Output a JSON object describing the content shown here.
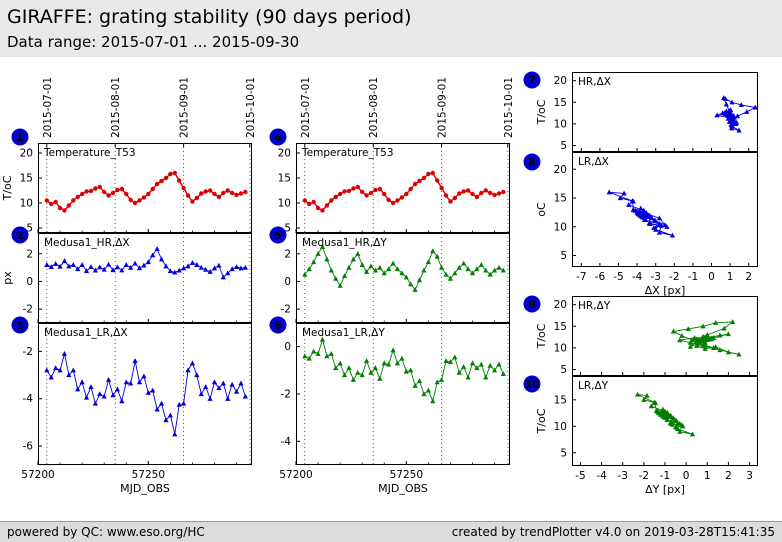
{
  "header": {
    "title": "GIRAFFE: grating stability (90 days period)",
    "subtitle": "Data range: 2015-07-01 ... 2015-09-30"
  },
  "footer": {
    "left": "powered by QC: www.eso.org/HC",
    "right": "created by trendPlotter v4.0 on 2019-03-28T15:41:35"
  },
  "colors": {
    "red": "#dd0000",
    "blue": "#0000dd",
    "green": "#008000",
    "badge_bg": "#0000cc",
    "badge_text": "#ffffff"
  },
  "series": {
    "mjd": [
      57204,
      57206,
      57208,
      57210,
      57212,
      57214,
      57216,
      57218,
      57220,
      57222,
      57224,
      57226,
      57228,
      57230,
      57232,
      57234,
      57236,
      57238,
      57240,
      57242,
      57244,
      57246,
      57248,
      57250,
      57252,
      57254,
      57256,
      57258,
      57260,
      57262,
      57264,
      57266,
      57268,
      57270,
      57272,
      57274,
      57276,
      57278,
      57280,
      57282,
      57284,
      57286,
      57288,
      57290,
      57292,
      57294
    ],
    "temperature": [
      10.5,
      9.8,
      10.2,
      9.0,
      8.5,
      9.5,
      10.5,
      11.2,
      11.8,
      12.3,
      12.4,
      12.9,
      13.2,
      12.2,
      11.5,
      12.0,
      12.6,
      12.8,
      11.8,
      10.6,
      10.0,
      10.5,
      11.1,
      11.8,
      12.8,
      13.8,
      14.4,
      15.0,
      15.8,
      16.0,
      14.5,
      13.0,
      11.5,
      10.3,
      11.0,
      11.9,
      12.3,
      12.5,
      11.8,
      11.2,
      12.0,
      12.5,
      12.0,
      11.6,
      11.9,
      12.2
    ],
    "hr_dx": [
      1.2,
      1.05,
      1.28,
      1.08,
      1.48,
      1.1,
      1.2,
      0.9,
      1.2,
      0.75,
      1.05,
      0.8,
      1.03,
      0.86,
      1.22,
      0.83,
      1.03,
      0.81,
      1.2,
      1.0,
      1.3,
      0.96,
      1.16,
      1.4,
      1.9,
      2.35,
      1.6,
      1.1,
      0.75,
      0.65,
      0.8,
      0.95,
      1.1,
      1.35,
      1.2,
      1.0,
      0.85,
      0.7,
      0.95,
      1.15,
      0.3,
      0.6,
      0.9,
      1.05,
      0.95,
      1.0
    ],
    "lr_dx": [
      -2.8,
      -3.1,
      -2.7,
      -2.8,
      -2.1,
      -3.0,
      -2.8,
      -3.6,
      -3.3,
      -3.95,
      -3.5,
      -4.2,
      -3.8,
      -3.9,
      -3.2,
      -3.85,
      -3.6,
      -4.1,
      -3.3,
      -3.35,
      -2.4,
      -3.3,
      -3.05,
      -3.75,
      -3.65,
      -4.45,
      -4.2,
      -4.9,
      -4.7,
      -5.5,
      -4.25,
      -4.2,
      -2.8,
      -2.5,
      -3.0,
      -3.8,
      -3.5,
      -4.0,
      -3.3,
      -3.55,
      -3.35,
      -4.0,
      -3.4,
      -3.7,
      -3.35,
      -3.9
    ],
    "hr_dy": [
      0.5,
      0.9,
      1.4,
      2.0,
      2.5,
      1.6,
      0.8,
      0.2,
      -0.3,
      0.4,
      1.0,
      1.6,
      2.0,
      1.2,
      0.7,
      1.1,
      0.8,
      1.0,
      0.6,
      0.9,
      1.3,
      0.9,
      0.6,
      0.3,
      -0.2,
      -0.6,
      0.1,
      0.8,
      1.4,
      2.2,
      1.8,
      1.0,
      0.5,
      0.2,
      0.6,
      1.0,
      1.3,
      0.9,
      0.6,
      0.9,
      1.2,
      0.8,
      0.5,
      0.8,
      1.0,
      0.8
    ],
    "lr_dy": [
      -0.4,
      -0.5,
      -0.2,
      -0.3,
      0.3,
      -0.4,
      -0.3,
      -0.9,
      -0.7,
      -1.2,
      -0.9,
      -1.4,
      -1.1,
      -1.2,
      -0.6,
      -1.1,
      -0.9,
      -1.35,
      -0.7,
      -0.75,
      -0.15,
      -0.7,
      -0.5,
      -1.05,
      -1.0,
      -1.65,
      -1.45,
      -2.0,
      -1.85,
      -2.3,
      -1.5,
      -1.4,
      -0.6,
      -0.65,
      -0.45,
      -1.1,
      -0.85,
      -1.3,
      -0.7,
      -0.9,
      -0.75,
      -1.3,
      -0.8,
      -1.0,
      -0.75,
      -1.15
    ]
  },
  "chart_data": [
    {
      "id": "plot1",
      "badge": "1",
      "badge_offset": [
        -18,
        -6
      ],
      "type": "line",
      "label": "Temperature_T53",
      "xkey": "mjd",
      "ykey": "temperature",
      "color": "red",
      "marker": "circle",
      "xlim": [
        57200,
        57297
      ],
      "xticks": [
        57200,
        57250
      ],
      "xminor": [
        57210,
        57220,
        57230,
        57240,
        57260,
        57270,
        57280,
        57290
      ],
      "gridx": [
        57204,
        57235,
        57266,
        57296
      ],
      "top_labels": [
        {
          "v": 57204,
          "t": "2015-07-01"
        },
        {
          "v": 57235,
          "t": "2015-08-01"
        },
        {
          "v": 57266,
          "t": "2015-09-01"
        },
        {
          "v": 57296,
          "t": "2015-10-01"
        }
      ],
      "ylim": [
        4,
        22
      ],
      "yticks": [
        5,
        10,
        15,
        20
      ],
      "ylabel": "T/oC"
    },
    {
      "id": "plot2",
      "badge": "2",
      "badge_offset": [
        -18,
        2
      ],
      "type": "line",
      "label": "Medusa1_HR,ΔX",
      "xkey": "mjd",
      "ykey": "hr_dx",
      "color": "blue",
      "marker": "triangle",
      "xlim": [
        57200,
        57297
      ],
      "xticks": [
        57200,
        57250
      ],
      "xminor": [
        57210,
        57220,
        57230,
        57240,
        57260,
        57270,
        57280,
        57290
      ],
      "gridx": [
        57204,
        57235,
        57266,
        57296
      ],
      "ylim": [
        -3,
        3.5
      ],
      "yticks": [
        -2,
        0,
        2
      ],
      "ylabel": "px"
    },
    {
      "id": "plot3",
      "badge": "3",
      "badge_offset": [
        -18,
        2
      ],
      "type": "line",
      "label": "Medusa1_LR,ΔX",
      "xkey": "mjd",
      "ykey": "lr_dx",
      "color": "blue",
      "marker": "triangle",
      "xlim": [
        57200,
        57297
      ],
      "xticks": [
        57200,
        57250
      ],
      "xminor": [
        57210,
        57220,
        57230,
        57240,
        57260,
        57270,
        57280,
        57290
      ],
      "gridx": [
        57204,
        57235,
        57266,
        57296
      ],
      "show_xtick_labels": true,
      "xlabel": "MJD_OBS",
      "ylim": [
        -6.8,
        -0.8
      ],
      "yticks": [
        -6,
        -4,
        -2
      ]
    },
    {
      "id": "plot4",
      "badge": "4",
      "badge_offset": [
        -18,
        -6
      ],
      "type": "line",
      "label": "Temperature_T53",
      "xkey": "mjd",
      "ykey": "temperature",
      "color": "red",
      "marker": "circle",
      "xlim": [
        57200,
        57297
      ],
      "xticks": [
        57200,
        57250
      ],
      "xminor": [
        57210,
        57220,
        57230,
        57240,
        57260,
        57270,
        57280,
        57290
      ],
      "gridx": [
        57204,
        57235,
        57266,
        57296
      ],
      "top_labels": [
        {
          "v": 57204,
          "t": "2015-07-01"
        },
        {
          "v": 57235,
          "t": "2015-08-01"
        },
        {
          "v": 57266,
          "t": "2015-09-01"
        },
        {
          "v": 57296,
          "t": "2015-10-01"
        }
      ],
      "ylim": [
        4,
        22
      ],
      "yticks": [
        5,
        10,
        15,
        20
      ]
    },
    {
      "id": "plot5",
      "badge": "5",
      "badge_offset": [
        -18,
        2
      ],
      "type": "line",
      "label": "Medusa1_HR,ΔY",
      "xkey": "mjd",
      "ykey": "hr_dy",
      "color": "green",
      "marker": "triangle",
      "xlim": [
        57200,
        57297
      ],
      "xticks": [
        57200,
        57250
      ],
      "xminor": [
        57210,
        57220,
        57230,
        57240,
        57260,
        57270,
        57280,
        57290
      ],
      "gridx": [
        57204,
        57235,
        57266,
        57296
      ],
      "ylim": [
        -3,
        3.5
      ],
      "yticks": [
        -2,
        0,
        2
      ]
    },
    {
      "id": "plot6",
      "badge": "6",
      "badge_offset": [
        -18,
        2
      ],
      "type": "line",
      "label": "Medusa1_LR,ΔY",
      "xkey": "mjd",
      "ykey": "lr_dy",
      "color": "green",
      "marker": "triangle",
      "xlim": [
        57200,
        57297
      ],
      "xticks": [
        57200,
        57250
      ],
      "xminor": [
        57210,
        57220,
        57230,
        57240,
        57260,
        57270,
        57280,
        57290
      ],
      "gridx": [
        57204,
        57235,
        57266,
        57296
      ],
      "show_xtick_labels": true,
      "xlabel": "MJD_OBS",
      "ylim": [
        -5,
        1
      ],
      "yticks": [
        -4,
        -2,
        0
      ]
    },
    {
      "id": "plot7",
      "badge": "7",
      "badge_offset": [
        -40,
        8
      ],
      "type": "scatter",
      "label": "HR,ΔX",
      "xkey": "hr_dx",
      "ykey": "temperature",
      "color": "blue",
      "marker": "triangle",
      "xlim": [
        -7.5,
        2.5
      ],
      "xticks": [
        -7,
        -6,
        -5,
        -4,
        -3,
        -2,
        -1,
        0,
        1,
        2
      ],
      "ylim": [
        3.5,
        22
      ],
      "yticks": [
        5,
        10,
        15,
        20
      ],
      "ylabel": "T/oC"
    },
    {
      "id": "plot8",
      "badge": "8",
      "badge_offset": [
        -40,
        10
      ],
      "type": "scatter",
      "label": "LR,ΔX",
      "xkey": "lr_dx",
      "ykey": "temperature",
      "color": "blue",
      "marker": "triangle",
      "xlim": [
        -7.5,
        2.5
      ],
      "xticks": [
        -7,
        -6,
        -5,
        -4,
        -3,
        -2,
        -1,
        0,
        1,
        2
      ],
      "show_xtick_labels": true,
      "xlabel": "ΔX [px]",
      "ylim": [
        3,
        23
      ],
      "yticks": [
        5,
        10,
        15,
        20
      ],
      "ylabel": "oC"
    },
    {
      "id": "plot9",
      "badge": "9",
      "badge_offset": [
        -40,
        8
      ],
      "type": "scatter",
      "label": "HR,ΔY",
      "xkey": "hr_dy",
      "ykey": "temperature",
      "color": "green",
      "marker": "triangle",
      "xlim": [
        -5.4,
        3.4
      ],
      "xticks": [
        -5,
        -4,
        -3,
        -2,
        -1,
        0,
        1,
        2,
        3
      ],
      "ylim": [
        3.5,
        22
      ],
      "yticks": [
        5,
        10,
        15,
        20
      ],
      "ylabel": "T/oC"
    },
    {
      "id": "plot10",
      "badge": "10",
      "badge_offset": [
        -40,
        8
      ],
      "type": "scatter",
      "label": "LR,ΔY",
      "xkey": "lr_dy",
      "ykey": "temperature",
      "color": "green",
      "marker": "triangle",
      "xlim": [
        -5.4,
        3.4
      ],
      "xticks": [
        -5,
        -4,
        -3,
        -2,
        -1,
        0,
        1,
        2,
        3
      ],
      "show_xtick_labels": true,
      "xlabel": "ΔY [px]",
      "ylim": [
        2.5,
        19.5
      ],
      "yticks": [
        5,
        10,
        15
      ],
      "ylabel": "T/oC"
    }
  ]
}
